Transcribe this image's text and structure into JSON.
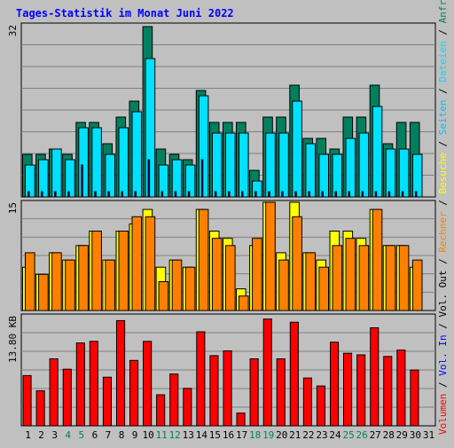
{
  "title": "Tages-Statistik im Monat Juni 2022",
  "colors": {
    "title": "#0000FF",
    "hits": "#00805F",
    "files": "#00E0FF",
    "pages": "#00C0FF",
    "visits": "#FFFF00",
    "sites": "#FF8000",
    "kbytes": "#FF0000",
    "weekend": "#00805F",
    "grid": "#808080",
    "panel": "#C0C0C0"
  },
  "right_axis_label": {
    "hits": "Anfragen",
    "files": "Dateien",
    "pages": "Seiten",
    "visits": "Besuche",
    "sites": "Rechner",
    "vol_out": "Vol. Out",
    "vol_in": "Vol. In",
    "kbytes": "Volumen",
    "sep": " / "
  },
  "chart_data": [
    {
      "type": "bar",
      "panel": "requests",
      "y_max_label": "32",
      "y_max": 32,
      "categories": [
        "1",
        "2",
        "3",
        "4",
        "5",
        "6",
        "7",
        "8",
        "9",
        "10",
        "11",
        "12",
        "13",
        "14",
        "15",
        "16",
        "17",
        "18",
        "19",
        "20",
        "21",
        "22",
        "23",
        "24",
        "25",
        "26",
        "27",
        "28",
        "29",
        "30",
        "31"
      ],
      "weekend_days": [
        "4",
        "5",
        "11",
        "12",
        "18",
        "19",
        "25",
        "26"
      ],
      "series": [
        {
          "name": "Anfragen",
          "values": [
            8,
            8,
            9,
            8,
            14,
            14,
            10,
            15,
            18,
            32,
            9,
            8,
            7,
            20,
            14,
            14,
            14,
            5,
            15,
            15,
            21,
            11,
            11,
            9,
            15,
            15,
            21,
            10,
            14,
            14,
            0
          ]
        },
        {
          "name": "Dateien",
          "values": [
            6,
            7,
            9,
            7,
            13,
            13,
            8,
            13,
            16,
            26,
            6,
            7,
            6,
            19,
            12,
            12,
            12,
            3,
            12,
            12,
            18,
            10,
            8,
            8,
            11,
            12,
            17,
            9,
            9,
            8,
            0
          ]
        },
        {
          "name": "Seiten",
          "values": [
            1,
            1,
            1,
            1,
            6,
            1,
            1,
            1,
            1,
            7,
            1,
            1,
            1,
            7,
            1,
            1,
            1,
            1,
            1,
            1,
            1,
            1,
            1,
            1,
            1,
            1,
            1,
            1,
            1,
            1,
            0
          ]
        }
      ]
    },
    {
      "type": "bar",
      "panel": "visits",
      "y_max_label": "15",
      "y_max": 15,
      "categories": [
        "1",
        "2",
        "3",
        "4",
        "5",
        "6",
        "7",
        "8",
        "9",
        "10",
        "11",
        "12",
        "13",
        "14",
        "15",
        "16",
        "17",
        "18",
        "19",
        "20",
        "21",
        "22",
        "23",
        "24",
        "25",
        "26",
        "27",
        "28",
        "29",
        "30",
        "31"
      ],
      "series": [
        {
          "name": "Besuche",
          "values": [
            6,
            5,
            8,
            7,
            9,
            11,
            7,
            11,
            12,
            14,
            6,
            7,
            6,
            14,
            11,
            10,
            3,
            9,
            15,
            8,
            15,
            8,
            7,
            11,
            11,
            10,
            14,
            9,
            9,
            6,
            0
          ]
        },
        {
          "name": "Rechner",
          "values": [
            8,
            5,
            8,
            7,
            9,
            11,
            7,
            11,
            13,
            13,
            4,
            7,
            6,
            14,
            10,
            9,
            2,
            10,
            15,
            7,
            13,
            8,
            6,
            9,
            10,
            9,
            14,
            9,
            9,
            7,
            0
          ]
        }
      ]
    },
    {
      "type": "bar",
      "panel": "volume",
      "y_max_label": "13.80 KB",
      "y_max": 13.8,
      "categories": [
        "1",
        "2",
        "3",
        "4",
        "5",
        "6",
        "7",
        "8",
        "9",
        "10",
        "11",
        "12",
        "13",
        "14",
        "15",
        "16",
        "17",
        "18",
        "19",
        "20",
        "21",
        "22",
        "23",
        "24",
        "25",
        "26",
        "27",
        "28",
        "29",
        "30",
        "31"
      ],
      "series": [
        {
          "name": "Volumen",
          "values": [
            6.3,
            4.4,
            8.4,
            7.1,
            10.4,
            10.6,
            6.1,
            13.2,
            8.2,
            10.6,
            3.9,
            6.5,
            4.7,
            11.8,
            8.8,
            9.4,
            1.6,
            8.4,
            13.4,
            8.4,
            13.0,
            6.0,
            5.0,
            10.5,
            9.1,
            8.9,
            12.3,
            8.7,
            9.5,
            7.0,
            0
          ]
        }
      ]
    }
  ]
}
